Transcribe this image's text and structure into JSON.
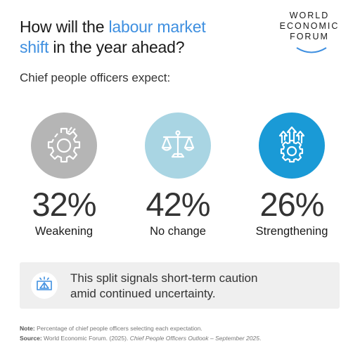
{
  "title": {
    "part1": "How will the ",
    "highlight1": "labour market",
    "highlight2": "shift",
    "part2": " in the year ahead?"
  },
  "logo": {
    "line1": "WORLD",
    "line2": "ECONOMIC",
    "line3": "FORUM"
  },
  "subtitle": "Chief people officers expect:",
  "stats": [
    {
      "value": "32%",
      "label": "Weakening",
      "icon": "broken-gear-icon",
      "color": "#b5b5b5"
    },
    {
      "value": "42%",
      "label": "No change",
      "icon": "balance-scale-icon",
      "color": "#a9d5e3"
    },
    {
      "value": "26%",
      "label": "Strengthening",
      "icon": "gear-up-arrows-icon",
      "color": "#1a9ad6"
    }
  ],
  "callout": {
    "icon": "warning-icon",
    "line1": "This split signals short-term caution",
    "line2": "amid continued uncertainty."
  },
  "note": {
    "label": "Note:",
    "text": " Percentage of chief people officers selecting each expectation."
  },
  "source": {
    "label": "Source:",
    "text": " World Economic Forum. (2025). ",
    "italic": "Chief People Officers Outlook – September 2025",
    "end": "."
  },
  "colors": {
    "accent": "#3e8fe0",
    "grey": "#b5b5b5",
    "lightblue": "#a9d5e3",
    "blue": "#1a9ad6"
  }
}
